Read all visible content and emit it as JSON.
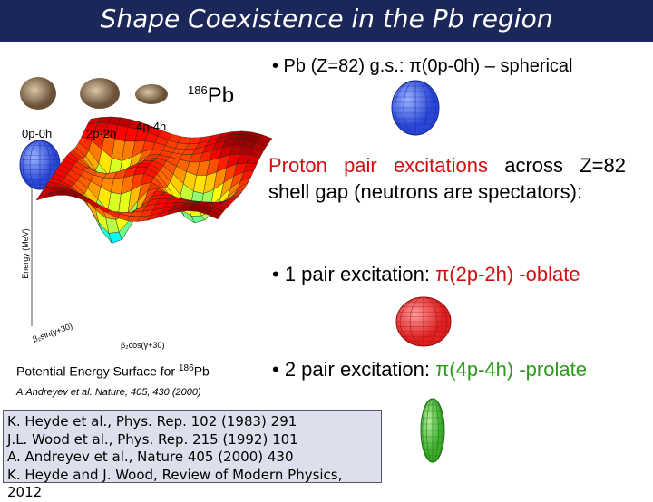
{
  "header": {
    "title": "Shape Coexistence in the Pb region"
  },
  "nucleus": {
    "mass": "186",
    "symbol": "Pb"
  },
  "shapes": [
    "0p-0h",
    "2p-2h",
    "4p-4h"
  ],
  "ground_state": "• Pb (Z=82) g.s.: π(0p-0h) – spherical",
  "paragraph": {
    "highlight": "Proton pair excitations",
    "rest": " across Z=82 shell gap (neutrons are spectators):"
  },
  "excitation_1": {
    "lead": "• 1 pair excitation: ",
    "detail": "π(2p-2h) -oblate"
  },
  "excitation_2": {
    "lead": "• 2 pair excitation: ",
    "detail": "π(4p-4h) -prolate"
  },
  "surface": {
    "y_axis": "Energy (MeV)",
    "x_axis_1": "β₂cos(γ+30)",
    "x_axis_2": "β₂sin(γ+30)",
    "caption": {
      "text": "Potential Energy Surface for ",
      "mass": "186",
      "symbol": "Pb"
    },
    "citation": "A.Andreyev et al.  Nature, 405, 430 (2000)"
  },
  "references": [
    "K. Heyde et al., Phys. Rep. 102 (1983) 291",
    "J.L. Wood et al., Phys. Rep. 215 (1992) 101",
    "A. Andreyev et al., Nature 405 (2000) 430",
    "K. Heyde and J. Wood, Review of Modern Physics, 2012"
  ]
}
